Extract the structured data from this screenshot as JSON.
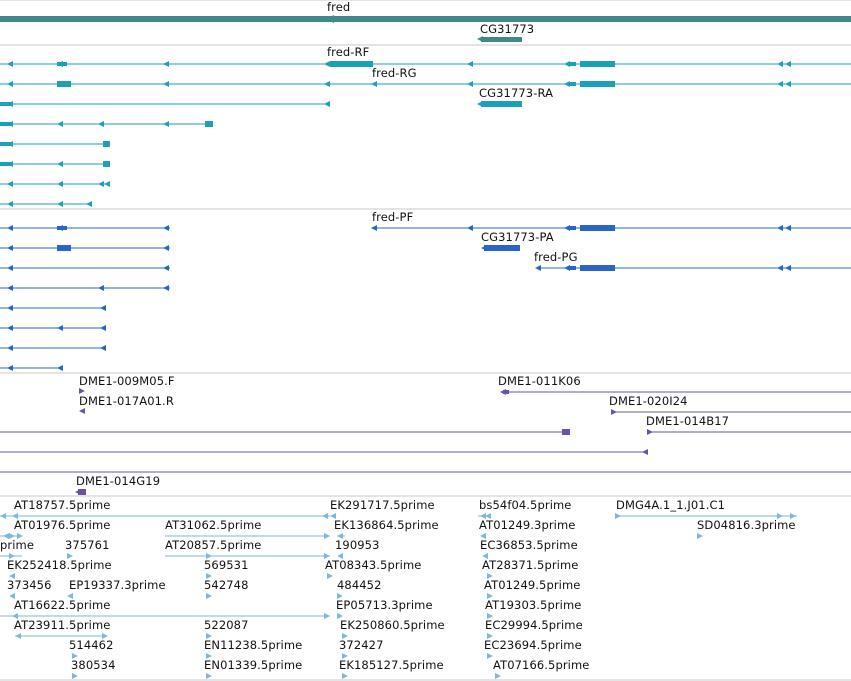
{
  "browser": {
    "colors": {
      "gene": "#3f8a87",
      "transcript_teal": "#1aa0b8",
      "transcript_blue": "#2a64c6",
      "clone": "#6a52a8",
      "est": "#7eb7d9",
      "divider": "#c8c8c8"
    },
    "tracks": {
      "gene": {
        "labels": [
          "fred",
          "CG31773"
        ]
      },
      "transcripts_a": {
        "labels": [
          "fred-RF",
          "fred-RG",
          "CG31773-RA"
        ]
      },
      "transcripts_b": {
        "labels": [
          "fred-PF",
          "CG31773-PA",
          "fred-PG"
        ]
      },
      "clones": {
        "labels": [
          "DME1-009M05.F",
          "DME1-017A01.R",
          "DME1-011K06",
          "DME1-020I24",
          "DME1-014B17",
          "DME1-014G19"
        ]
      },
      "ests": {
        "labels": [
          "AT18757.5prime",
          "EK291717.5prime",
          "bs54f04.5prime",
          "DMG4A.1_1.J01.C1",
          "AT01976.5prime",
          "AT31062.5prime",
          "EK136864.5prime",
          "AT01249.3prime",
          "SD04816.3prime",
          "prime",
          "375761",
          "AT20857.5prime",
          "190953",
          "EC36853.5prime",
          "EK252418.5prime",
          "569531",
          "AT08343.5prime",
          "AT28371.5prime",
          "373456",
          "EP19337.3prime",
          "542748",
          "484452",
          "AT01249.5prime",
          "AT16622.5prime",
          "EP05713.3prime",
          "AT19303.5prime",
          "AT23911.5prime",
          "522087",
          "EK250860.5prime",
          "EC29994.5prime",
          "514462",
          "EN11238.5prime",
          "372427",
          "EC23694.5prime",
          "380534",
          "EN01339.5prime",
          "EK185127.5prime",
          "AT07166.5prime"
        ]
      }
    }
  }
}
